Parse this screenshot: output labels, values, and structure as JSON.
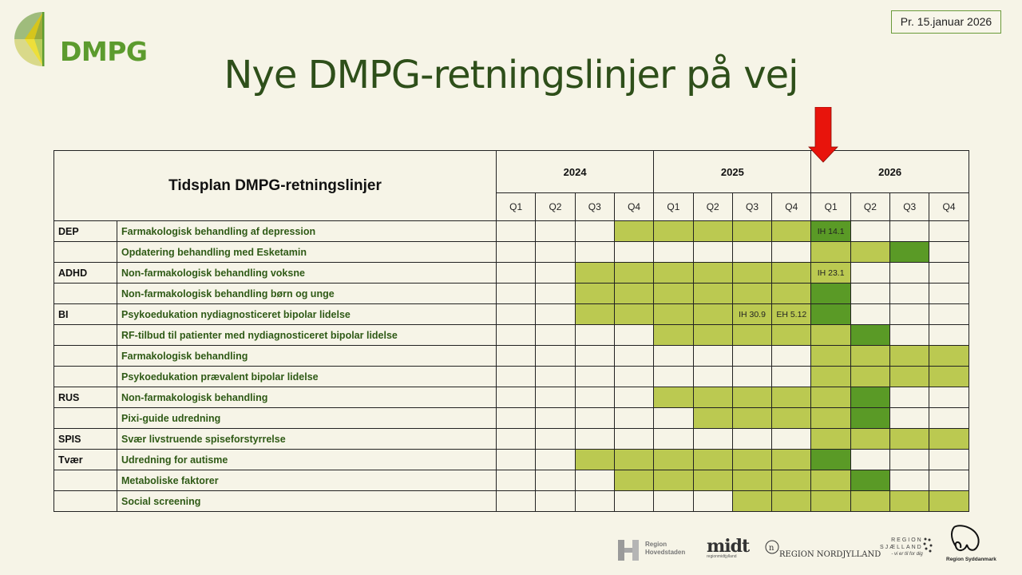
{
  "header": {
    "logo_text": "DMPG",
    "date_badge": "Pr. 15.januar 2026",
    "title": "Nye DMPG-retningslinjer på vej",
    "current_marker": "red-arrow-down-icon"
  },
  "colors": {
    "background": "#f6f4e7",
    "title": "#2e4f1a",
    "topic_text": "#2f5a16",
    "light_green": "#bbc951",
    "dark_green": "#5a9a26",
    "arrow": "#e8140c"
  },
  "table": {
    "title": "Tidsplan DMPG-retningslinjer",
    "years": [
      "2024",
      "2025",
      "2026"
    ],
    "quarters": [
      "Q1",
      "Q2",
      "Q3",
      "Q4",
      "Q1",
      "Q2",
      "Q3",
      "Q4",
      "Q1",
      "Q2",
      "Q3",
      "Q4"
    ],
    "legend_states": {
      "0": "empty",
      "1": "light-green",
      "2": "dark-green"
    },
    "rows": [
      {
        "category": "DEP",
        "topic": "Farmakologisk behandling af depression",
        "cells": [
          0,
          0,
          0,
          1,
          1,
          1,
          1,
          1,
          2,
          0,
          0,
          0
        ],
        "notes": {
          "8": "IH 14.1"
        }
      },
      {
        "category": "",
        "topic": "Opdatering behandling med Esketamin",
        "cells": [
          0,
          0,
          0,
          0,
          0,
          0,
          0,
          0,
          1,
          1,
          2,
          0
        ],
        "notes": {}
      },
      {
        "category": "ADHD",
        "topic": "Non-farmakologisk behandling voksne",
        "cells": [
          0,
          0,
          1,
          1,
          1,
          1,
          1,
          1,
          1,
          0,
          0,
          0
        ],
        "notes": {
          "8": "IH 23.1"
        }
      },
      {
        "category": "",
        "topic": "Non-farmakologisk behandling børn og unge",
        "cells": [
          0,
          0,
          1,
          1,
          1,
          1,
          1,
          1,
          2,
          0,
          0,
          0
        ],
        "notes": {}
      },
      {
        "category": "BI",
        "topic": "Psykoedukation nydiagnosticeret bipolar lidelse",
        "cells": [
          0,
          0,
          1,
          1,
          1,
          1,
          1,
          1,
          2,
          0,
          0,
          0
        ],
        "notes": {
          "6": "IH 30.9",
          "7": "EH 5.12"
        }
      },
      {
        "category": "",
        "topic": "RF-tilbud til patienter med nydiagnosticeret bipolar lidelse",
        "cells": [
          0,
          0,
          0,
          0,
          1,
          1,
          1,
          1,
          1,
          2,
          0,
          0
        ],
        "notes": {}
      },
      {
        "category": "",
        "topic": "Farmakologisk behandling",
        "cells": [
          0,
          0,
          0,
          0,
          0,
          0,
          0,
          0,
          1,
          1,
          1,
          1
        ],
        "notes": {}
      },
      {
        "category": "",
        "topic": "Psykoedukation prævalent bipolar lidelse",
        "cells": [
          0,
          0,
          0,
          0,
          0,
          0,
          0,
          0,
          1,
          1,
          1,
          1
        ],
        "notes": {}
      },
      {
        "category": "RUS",
        "topic": "Non-farmakologisk behandling",
        "cells": [
          0,
          0,
          0,
          0,
          1,
          1,
          1,
          1,
          1,
          2,
          0,
          0
        ],
        "notes": {}
      },
      {
        "category": "",
        "topic": "Pixi-guide udredning",
        "cells": [
          0,
          0,
          0,
          0,
          0,
          1,
          1,
          1,
          1,
          2,
          0,
          0
        ],
        "notes": {}
      },
      {
        "category": "SPIS",
        "topic": "Svær livstruende spiseforstyrrelse",
        "cells": [
          0,
          0,
          0,
          0,
          0,
          0,
          0,
          0,
          1,
          1,
          1,
          1
        ],
        "notes": {}
      },
      {
        "category": "Tvær",
        "topic": "Udredning for autisme",
        "cells": [
          0,
          0,
          1,
          1,
          1,
          1,
          1,
          1,
          2,
          0,
          0,
          0
        ],
        "notes": {}
      },
      {
        "category": "",
        "topic": "Metaboliske faktorer",
        "cells": [
          0,
          0,
          0,
          1,
          1,
          1,
          1,
          1,
          1,
          2,
          0,
          0
        ],
        "notes": {}
      },
      {
        "category": "",
        "topic": "Social screening",
        "cells": [
          0,
          0,
          0,
          0,
          0,
          0,
          1,
          1,
          1,
          1,
          1,
          1
        ],
        "notes": {}
      }
    ]
  },
  "footer": {
    "regions": [
      {
        "name": "Region Hovedstaden",
        "line1": "Region",
        "line2": "Hovedstaden"
      },
      {
        "name": "Region Midtjylland",
        "line1": "midt",
        "line2": "regionmidtjylland"
      },
      {
        "name": "Region Nordjylland",
        "line1": "REGION NORDJYLLAND"
      },
      {
        "name": "Region Sjælland",
        "line1": "REGION",
        "line2": "SJÆLLAND",
        "line3": "- vi er til for dig"
      },
      {
        "name": "Region Syddanmark",
        "line1": "Region Syddanmark"
      }
    ]
  }
}
